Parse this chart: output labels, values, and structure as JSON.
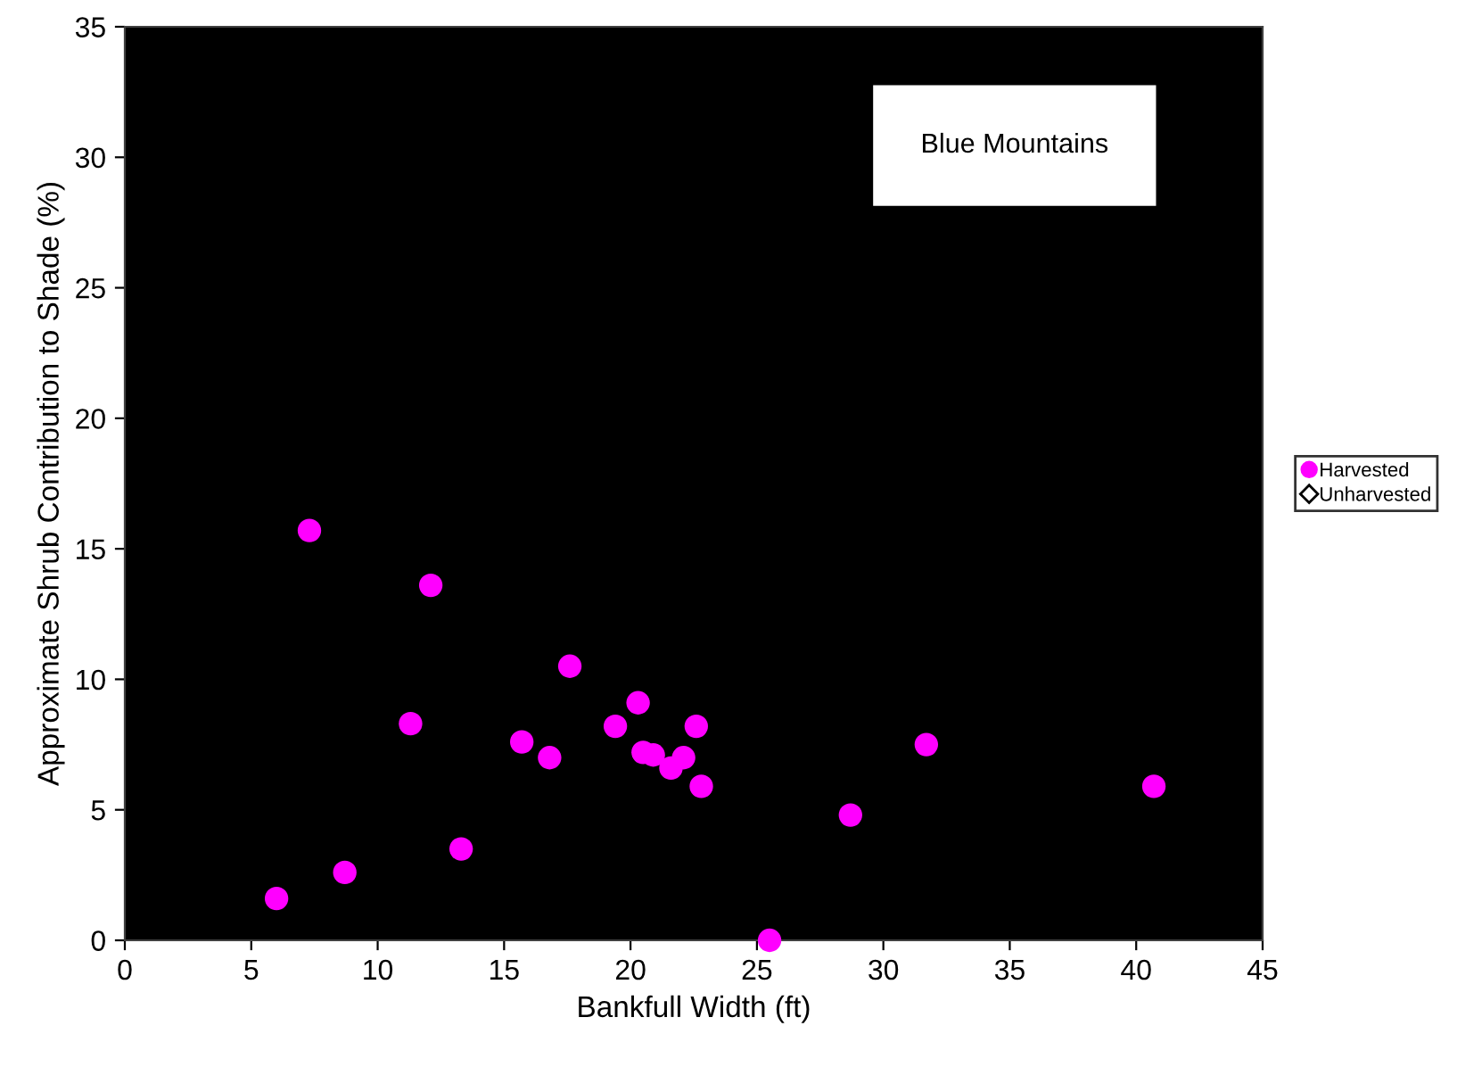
{
  "chart_data": {
    "type": "scatter",
    "xlabel": "Bankfull Width (ft)",
    "ylabel": "Approximate Shrub Contribution to Shade (%)",
    "annotations": [
      "Blue Mountains"
    ],
    "xlim": [
      0,
      45
    ],
    "xticks": [
      0,
      5,
      10,
      15,
      20,
      25,
      30,
      35,
      40,
      45
    ],
    "ylim": [
      0,
      35
    ],
    "yticks": [
      0,
      5,
      10,
      15,
      20,
      25,
      30,
      35
    ],
    "grid": false,
    "legend": "right",
    "series": [
      {
        "name": "Harvested",
        "color": "#ff00ff",
        "marker": "circle",
        "x": [
          7.3,
          12.1,
          17.6,
          11.3,
          15.7,
          16.8,
          19.4,
          20.3,
          20.5,
          20.9,
          21.6,
          22.1,
          22.6,
          22.8,
          13.3,
          8.7,
          6.0,
          25.5,
          28.7,
          31.7,
          40.7
        ],
        "values": [
          15.7,
          13.6,
          10.5,
          8.3,
          7.6,
          7.0,
          8.2,
          9.1,
          7.2,
          7.1,
          6.6,
          7.0,
          8.2,
          5.9,
          3.5,
          2.6,
          1.6,
          0,
          4.8,
          7.5,
          5.9
        ]
      },
      {
        "name": "Unharvested",
        "color": "#000000",
        "marker": "diamond"
      }
    ]
  }
}
